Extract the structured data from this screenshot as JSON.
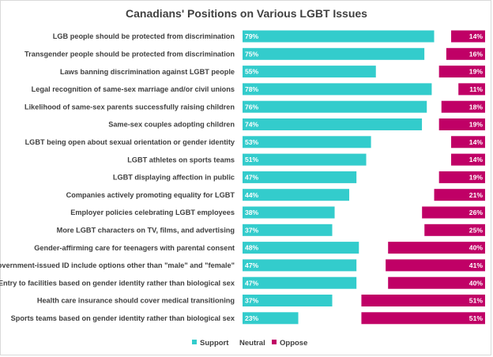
{
  "chart_data": {
    "type": "bar",
    "title": "Canadians' Positions on Various LGBT Issues",
    "categories": [
      "LGB people should be protected from discrimination",
      "Transgender people should be protected from discrimination",
      "Laws banning discrimination against LGBT people",
      "Legal recognition of same-sex marriage and/or civil unions",
      "Likelihood of same-sex parents successfully raising children",
      "Same-sex couples adopting children",
      "LGBT being open about sexual orientation or gender identity",
      "LGBT athletes on sports teams",
      "LGBT displaying affection in public",
      "Companies actively promoting equality for LGBT",
      "Employer policies celebrating LGBT employees",
      "More LGBT characters on TV, films, and advertising",
      "Gender-affirming care for teenagers with parental consent",
      "Government-issued ID include options other than \"male\" and \"female\"",
      "Entry to facilities based on gender identity rather than biological sex",
      "Health care insurance should cover medical transitioning",
      "Sports teams based on gender identity rather than biological sex"
    ],
    "series": [
      {
        "name": "Support",
        "color": "#33cccc",
        "values": [
          79,
          75,
          55,
          78,
          76,
          74,
          53,
          51,
          47,
          44,
          38,
          37,
          48,
          47,
          47,
          37,
          23
        ]
      },
      {
        "name": "Neutral",
        "color": "#ffffff",
        "values": [
          7,
          9,
          26,
          11,
          6,
          7,
          33,
          35,
          34,
          35,
          36,
          38,
          12,
          12,
          13,
          12,
          26
        ]
      },
      {
        "name": "Oppose",
        "color": "#c00066",
        "values": [
          14,
          16,
          19,
          11,
          18,
          19,
          14,
          14,
          19,
          21,
          26,
          25,
          40,
          41,
          40,
          51,
          51
        ]
      }
    ],
    "value_suffix": "%",
    "xlim": [
      0,
      100
    ],
    "stacked": true,
    "orientation": "horizontal",
    "legend_position": "bottom",
    "grid": false
  }
}
